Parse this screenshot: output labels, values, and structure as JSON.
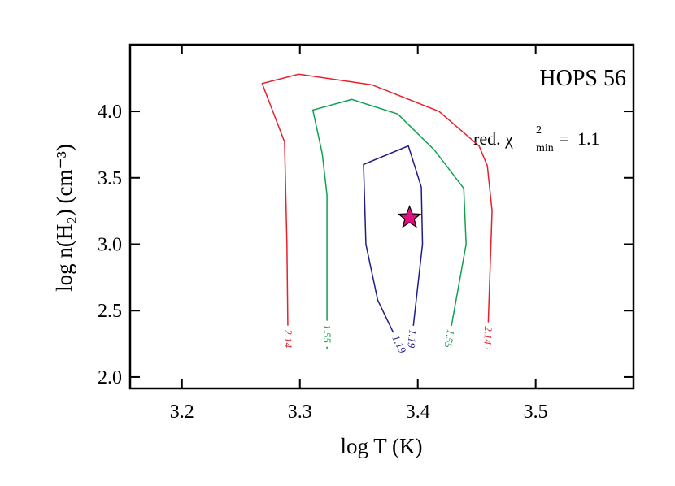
{
  "chart_data": {
    "type": "contour",
    "xlabel": "log T (K)",
    "ylabel": "log n(H₂) (cm⁻³)",
    "xlim": [
      3.156,
      3.583
    ],
    "ylim": [
      1.914,
      4.502
    ],
    "xticks": [
      3.2,
      3.3,
      3.4,
      3.5
    ],
    "yticks": [
      {
        "value": 2,
        "label": "2.0"
      },
      2.5,
      {
        "value": 3,
        "label": "3.0"
      },
      3.5,
      {
        "value": 4,
        "label": "4.0"
      }
    ],
    "annotations": {
      "title": "HOPS 56",
      "chi_label": "red. χ",
      "chi_sup": "2",
      "chi_sub": "min",
      "chi_eq": "=",
      "chi_value": 1.1
    },
    "series": [
      {
        "name": "2.14",
        "color": "#e8202a",
        "x": [
          3.29,
          3.289,
          3.287,
          3.268,
          3.299,
          3.361,
          3.418,
          3.452,
          3.459,
          3.463,
          3.459
        ],
        "y": [
          2.21,
          3.0,
          3.77,
          4.21,
          4.28,
          4.2,
          4.0,
          3.74,
          3.59,
          3.25,
          2.21
        ]
      },
      {
        "name": "1.55",
        "color": "#10a050",
        "x": [
          3.323,
          3.323,
          3.319,
          3.311,
          3.344,
          3.383,
          3.414,
          3.439,
          3.441,
          3.425
        ],
        "y": [
          2.21,
          3.37,
          3.68,
          4.01,
          4.09,
          3.98,
          3.71,
          3.42,
          3.0,
          2.21
        ]
      },
      {
        "name": "1.19",
        "color": "#1c1c8c",
        "x": [
          3.386,
          3.366,
          3.356,
          3.354,
          3.392,
          3.403,
          3.404,
          3.394
        ],
        "y": [
          2.21,
          2.58,
          3.0,
          3.6,
          3.74,
          3.43,
          3.0,
          2.21
        ]
      }
    ],
    "best_fit": {
      "x": 3.393,
      "y": 3.2,
      "color": "#e0107f"
    }
  }
}
